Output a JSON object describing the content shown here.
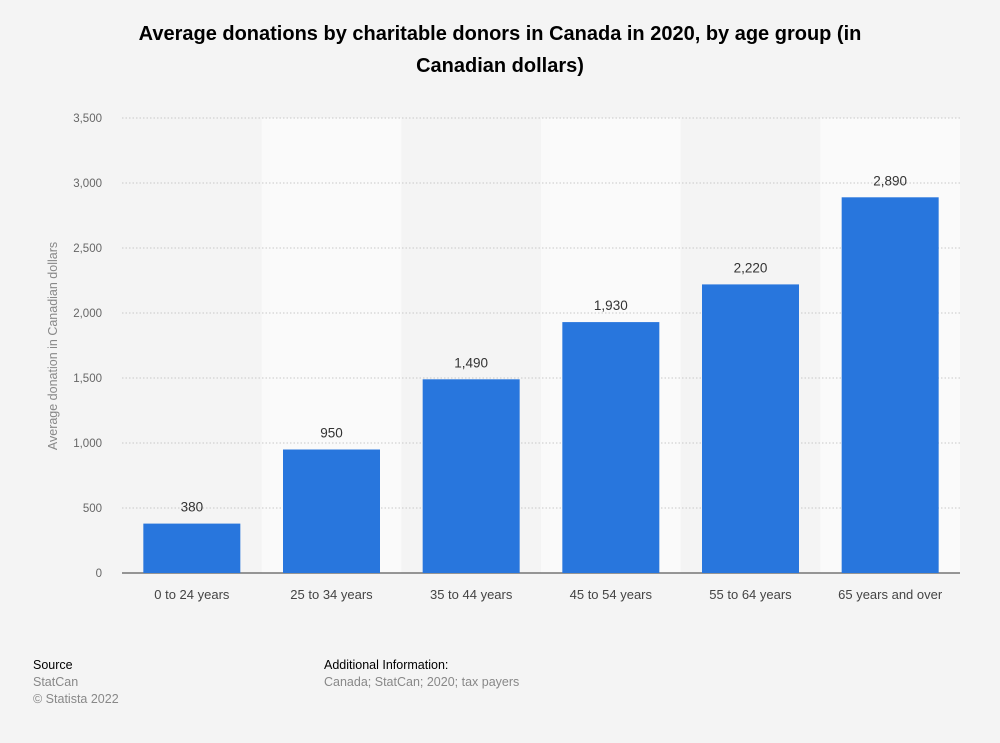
{
  "chart_data": {
    "type": "bar",
    "title": "Average donations by charitable donors in Canada in 2020, by age group (in Canadian dollars)",
    "ylabel": "Average donation in Canadian dollars",
    "xlabel": "",
    "categories": [
      "0 to 24 years",
      "25 to 34 years",
      "35 to 44 years",
      "45 to 54 years",
      "55 to 64 years",
      "65 years and over"
    ],
    "values": [
      380,
      950,
      1490,
      1930,
      2220,
      2890
    ],
    "value_labels": [
      "380",
      "950",
      "1,490",
      "1,930",
      "2,220",
      "2,890"
    ],
    "ylim": [
      0,
      3500
    ],
    "yticks": [
      0,
      500,
      1000,
      1500,
      2000,
      2500,
      3000,
      3500
    ],
    "ytick_labels": [
      "0",
      "500",
      "1,000",
      "1,500",
      "2,000",
      "2,500",
      "3,000",
      "3,500"
    ],
    "grid": true,
    "bar_color": "#2876dd"
  },
  "footer": {
    "source_heading": "Source",
    "source_name": "StatCan",
    "copyright": "© Statista 2022",
    "info_heading": "Additional Information:",
    "info_text": "Canada; StatCan; 2020; tax payers"
  }
}
